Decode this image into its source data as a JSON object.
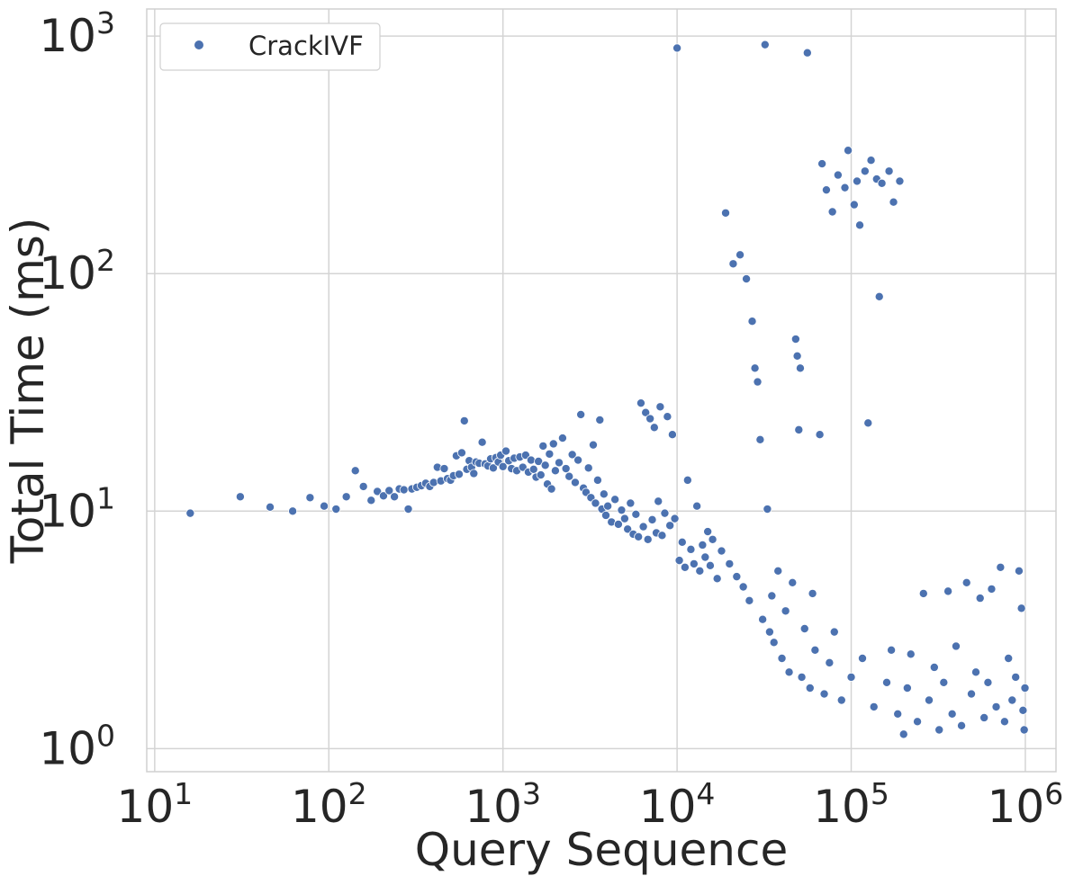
{
  "chart_data": {
    "type": "scatter",
    "title": "",
    "xlabel": "Query Sequence",
    "ylabel": "Total Time (ms)",
    "x_scale": "log",
    "y_scale": "log",
    "xlim": [
      9,
      1500000
    ],
    "ylim": [
      0.8,
      1300
    ],
    "grid": true,
    "legend_position": "top-left",
    "x_ticks": [
      {
        "base": "10",
        "exp": "1",
        "value": 10
      },
      {
        "base": "10",
        "exp": "2",
        "value": 100
      },
      {
        "base": "10",
        "exp": "3",
        "value": 1000
      },
      {
        "base": "10",
        "exp": "4",
        "value": 10000
      },
      {
        "base": "10",
        "exp": "5",
        "value": 100000
      },
      {
        "base": "10",
        "exp": "6",
        "value": 1000000
      }
    ],
    "y_ticks": [
      {
        "base": "10",
        "exp": "0",
        "value": 1
      },
      {
        "base": "10",
        "exp": "1",
        "value": 10
      },
      {
        "base": "10",
        "exp": "2",
        "value": 100
      },
      {
        "base": "10",
        "exp": "3",
        "value": 1000
      }
    ],
    "series": [
      {
        "name": "CrackIVF",
        "color": "#4c72b0",
        "points": [
          [
            16,
            9.8
          ],
          [
            31,
            11.5
          ],
          [
            46,
            10.4
          ],
          [
            62,
            10.0
          ],
          [
            78,
            11.4
          ],
          [
            94,
            10.5
          ],
          [
            110,
            10.2
          ],
          [
            126,
            11.5
          ],
          [
            142,
            14.8
          ],
          [
            158,
            12.7
          ],
          [
            175,
            11.1
          ],
          [
            190,
            12.1
          ],
          [
            206,
            11.6
          ],
          [
            222,
            12.2
          ],
          [
            238,
            11.5
          ],
          [
            254,
            12.4
          ],
          [
            270,
            12.3
          ],
          [
            286,
            10.2
          ],
          [
            300,
            12.4
          ],
          [
            320,
            12.6
          ],
          [
            340,
            12.8
          ],
          [
            360,
            13.1
          ],
          [
            380,
            12.7
          ],
          [
            400,
            13.2
          ],
          [
            420,
            15.3
          ],
          [
            440,
            13.4
          ],
          [
            460,
            15.1
          ],
          [
            480,
            13.7
          ],
          [
            500,
            13.5
          ],
          [
            520,
            14.1
          ],
          [
            540,
            17.1
          ],
          [
            560,
            14.3
          ],
          [
            580,
            17.6
          ],
          [
            600,
            24.0
          ],
          [
            620,
            15.0
          ],
          [
            640,
            16.3
          ],
          [
            660,
            15.3
          ],
          [
            680,
            14.4
          ],
          [
            700,
            16.1
          ],
          [
            730,
            15.9
          ],
          [
            760,
            19.5
          ],
          [
            790,
            15.8
          ],
          [
            820,
            15.5
          ],
          [
            850,
            16.6
          ],
          [
            880,
            15.2
          ],
          [
            910,
            16.8
          ],
          [
            940,
            16.1
          ],
          [
            970,
            17.2
          ],
          [
            1000,
            15.4
          ],
          [
            1040,
            17.9
          ],
          [
            1080,
            16.3
          ],
          [
            1120,
            15.1
          ],
          [
            1160,
            16.7
          ],
          [
            1200,
            14.8
          ],
          [
            1250,
            16.9
          ],
          [
            1300,
            15.3
          ],
          [
            1350,
            17.2
          ],
          [
            1400,
            14.6
          ],
          [
            1450,
            16.4
          ],
          [
            1500,
            15.0
          ],
          [
            1550,
            13.9
          ],
          [
            1600,
            16.2
          ],
          [
            1650,
            14.2
          ],
          [
            1700,
            18.8
          ],
          [
            1750,
            15.6
          ],
          [
            1800,
            13.0
          ],
          [
            1850,
            17.4
          ],
          [
            1900,
            12.4
          ],
          [
            1950,
            19.2
          ],
          [
            2000,
            14.8
          ],
          [
            2100,
            16.0
          ],
          [
            2200,
            20.3
          ],
          [
            2300,
            15.1
          ],
          [
            2400,
            14.0
          ],
          [
            2500,
            17.3
          ],
          [
            2600,
            13.2
          ],
          [
            2700,
            16.4
          ],
          [
            2800,
            25.5
          ],
          [
            2900,
            12.5
          ],
          [
            3000,
            12.0
          ],
          [
            3100,
            15.2
          ],
          [
            3200,
            11.4
          ],
          [
            3300,
            19.0
          ],
          [
            3400,
            10.8
          ],
          [
            3500,
            13.5
          ],
          [
            3600,
            24.2
          ],
          [
            3700,
            10.2
          ],
          [
            3800,
            11.8
          ],
          [
            3900,
            9.6
          ],
          [
            4000,
            10.5
          ],
          [
            4200,
            9.0
          ],
          [
            4400,
            11.2
          ],
          [
            4600,
            8.8
          ],
          [
            4800,
            10.1
          ],
          [
            5000,
            9.3
          ],
          [
            5200,
            8.4
          ],
          [
            5400,
            10.8
          ],
          [
            5600,
            8.0
          ],
          [
            5800,
            9.7
          ],
          [
            6000,
            7.8
          ],
          [
            6200,
            28.5
          ],
          [
            6400,
            8.6
          ],
          [
            6600,
            26.0
          ],
          [
            6800,
            7.6
          ],
          [
            7000,
            24.5
          ],
          [
            7200,
            9.2
          ],
          [
            7400,
            22.5
          ],
          [
            7600,
            8.1
          ],
          [
            7800,
            11.0
          ],
          [
            8000,
            27.5
          ],
          [
            8200,
            7.9
          ],
          [
            8500,
            9.8
          ],
          [
            8800,
            25.0
          ],
          [
            9100,
            8.7
          ],
          [
            9400,
            21.0
          ],
          [
            9700,
            9.3
          ],
          [
            10000,
            890
          ],
          [
            10300,
            6.2
          ],
          [
            10700,
            7.4
          ],
          [
            11100,
            5.8
          ],
          [
            11500,
            13.5
          ],
          [
            12000,
            6.9
          ],
          [
            12500,
            6.0
          ],
          [
            13000,
            10.5
          ],
          [
            13500,
            5.6
          ],
          [
            14000,
            7.2
          ],
          [
            14500,
            6.4
          ],
          [
            15000,
            8.2
          ],
          [
            15500,
            5.9
          ],
          [
            16000,
            7.6
          ],
          [
            17000,
            5.2
          ],
          [
            18000,
            6.8
          ],
          [
            19000,
            180
          ],
          [
            20000,
            6.0
          ],
          [
            21000,
            110
          ],
          [
            22000,
            5.3
          ],
          [
            23000,
            120
          ],
          [
            24000,
            4.8
          ],
          [
            25000,
            95
          ],
          [
            26000,
            4.2
          ],
          [
            27000,
            63
          ],
          [
            28000,
            40
          ],
          [
            29000,
            35
          ],
          [
            30000,
            20
          ],
          [
            31000,
            3.5
          ],
          [
            32000,
            920
          ],
          [
            33000,
            10.2
          ],
          [
            34000,
            3.1
          ],
          [
            35000,
            4.4
          ],
          [
            36000,
            2.8
          ],
          [
            38000,
            5.6
          ],
          [
            40000,
            2.4
          ],
          [
            42000,
            3.8
          ],
          [
            44000,
            2.1
          ],
          [
            46000,
            5.0
          ],
          [
            48000,
            53
          ],
          [
            49000,
            45
          ],
          [
            50000,
            22
          ],
          [
            51000,
            40
          ],
          [
            52000,
            2.0
          ],
          [
            54000,
            3.2
          ],
          [
            56000,
            850
          ],
          [
            58000,
            1.8
          ],
          [
            60000,
            4.5
          ],
          [
            62000,
            2.6
          ],
          [
            66000,
            21
          ],
          [
            68000,
            290
          ],
          [
            70000,
            1.7
          ],
          [
            72000,
            225
          ],
          [
            75000,
            2.3
          ],
          [
            78000,
            182
          ],
          [
            80000,
            3.1
          ],
          [
            84000,
            260
          ],
          [
            88000,
            1.6
          ],
          [
            92000,
            230
          ],
          [
            96000,
            330
          ],
          [
            100000,
            2.0
          ],
          [
            104000,
            195
          ],
          [
            108000,
            245
          ],
          [
            112000,
            160
          ],
          [
            116000,
            2.4
          ],
          [
            120000,
            270
          ],
          [
            125000,
            23.5
          ],
          [
            130000,
            300
          ],
          [
            135000,
            1.5
          ],
          [
            140000,
            250
          ],
          [
            145000,
            80
          ],
          [
            150000,
            240
          ],
          [
            160000,
            1.9
          ],
          [
            165000,
            270
          ],
          [
            170000,
            2.6
          ],
          [
            175000,
            200
          ],
          [
            185000,
            1.4
          ],
          [
            190000,
            245
          ],
          [
            200000,
            1.15
          ],
          [
            210000,
            1.8
          ],
          [
            220000,
            2.5
          ],
          [
            240000,
            1.3
          ],
          [
            260000,
            4.5
          ],
          [
            280000,
            1.6
          ],
          [
            300000,
            2.2
          ],
          [
            320000,
            1.2
          ],
          [
            340000,
            1.9
          ],
          [
            360000,
            4.6
          ],
          [
            380000,
            1.4
          ],
          [
            400000,
            2.7
          ],
          [
            430000,
            1.25
          ],
          [
            460000,
            5.0
          ],
          [
            490000,
            1.7
          ],
          [
            520000,
            2.1
          ],
          [
            550000,
            4.3
          ],
          [
            580000,
            1.35
          ],
          [
            610000,
            1.9
          ],
          [
            640000,
            4.7
          ],
          [
            680000,
            1.5
          ],
          [
            720000,
            5.8
          ],
          [
            760000,
            1.3
          ],
          [
            800000,
            2.4
          ],
          [
            840000,
            1.6
          ],
          [
            880000,
            2.0
          ],
          [
            920000,
            5.6
          ],
          [
            950000,
            3.9
          ],
          [
            970000,
            1.45
          ],
          [
            985000,
            1.2
          ],
          [
            995000,
            1.8
          ]
        ]
      }
    ]
  }
}
